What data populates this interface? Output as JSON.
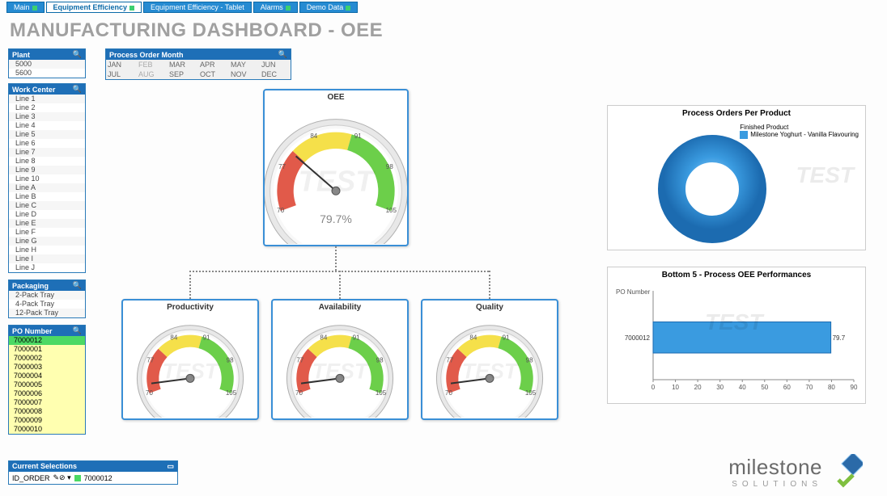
{
  "tabs": [
    {
      "label": "Main",
      "active": false,
      "dot": true
    },
    {
      "label": "Equipment Efficiency",
      "active": true,
      "dot": true
    },
    {
      "label": "Equipment Efficiency - Tablet",
      "active": false,
      "dot": false
    },
    {
      "label": "Alarms",
      "active": false,
      "dot": true
    },
    {
      "label": "Demo Data",
      "active": false,
      "dot": true
    }
  ],
  "title": "MANUFACTURING DASHBOARD - OEE",
  "filters": {
    "plant": {
      "title": "Plant",
      "items": [
        "5000",
        "5600"
      ]
    },
    "work_center": {
      "title": "Work Center",
      "items": [
        "Line 1",
        "Line 2",
        "Line 3",
        "Line 4",
        "Line 5",
        "Line 6",
        "Line 7",
        "Line 8",
        "Line 9",
        "Line 10",
        "Line A",
        "Line B",
        "Line C",
        "Line D",
        "Line E",
        "Line F",
        "Line G",
        "Line H",
        "Line I",
        "Line J"
      ],
      "selected": "Line D"
    },
    "packaging": {
      "title": "Packaging",
      "items": [
        "2-Pack Tray",
        "4-Pack Tray",
        "12-Pack Tray"
      ]
    },
    "po_number": {
      "title": "PO Number",
      "items": [
        "7000012",
        "7000001",
        "7000002",
        "7000003",
        "7000004",
        "7000005",
        "7000006",
        "7000007",
        "7000008",
        "7000009",
        "7000010"
      ],
      "selected": "7000012"
    }
  },
  "month_panel": {
    "title": "Process Order Month",
    "months": [
      "JAN",
      "FEB",
      "MAR",
      "APR",
      "MAY",
      "JUN",
      "JUL",
      "AUG",
      "SEP",
      "OCT",
      "NOV",
      "DEC"
    ]
  },
  "gauges": {
    "main": {
      "title": "OEE",
      "value": 79.7,
      "display": "79.7%"
    },
    "sub": [
      {
        "title": "Productivity",
        "value": 72
      },
      {
        "title": "Availability",
        "value": 72
      },
      {
        "title": "Quality",
        "value": 72
      }
    ],
    "scale": {
      "min": 70,
      "max": 105,
      "ticks": [
        70,
        77,
        84,
        91,
        98,
        105
      ],
      "red_end": 80,
      "yellow_end": 90,
      "red": "#e15a4a",
      "yellow": "#f5e04a",
      "green": "#6ccf4a",
      "face": "#f2f2f2",
      "ring": "linear"
    }
  },
  "donut": {
    "title": "Process Orders Per Product",
    "legend_title": "Finished Product",
    "legend_item": "Milestone Yoghurt - Vanilla Flavouring",
    "color": "#3a9be0"
  },
  "barchart": {
    "title": "Bottom 5 - Process OEE Performances",
    "ylabel": "PO Number",
    "bars": [
      {
        "label": "7000012",
        "value": 79.7
      }
    ],
    "xmax": 90,
    "xtick": 10,
    "bar_color": "#3a9be0"
  },
  "current_selections": {
    "title": "Current Selections",
    "field": "ID_ORDER",
    "value": "7000012"
  },
  "logo": {
    "main": "milestone",
    "sub": "SOLUTIONS"
  }
}
